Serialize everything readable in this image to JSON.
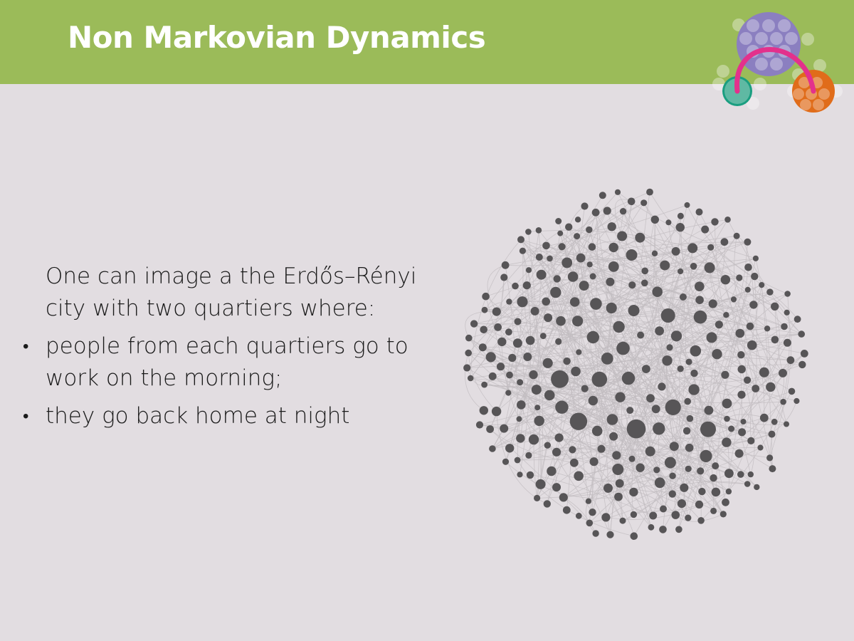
{
  "slide": {
    "title": "Non Markovian Dynamics",
    "intro": "One can image a the Erdős–Rényi city with two quartiers where:",
    "bullets": [
      "people from each quartiers go to work on the morning;",
      "they go back home at night"
    ]
  },
  "colors": {
    "header": "#9bbb59",
    "background": "#e2dde1",
    "node": "#575557",
    "edge": "#c2bdc1",
    "logo_purple": "#8b7fc0",
    "logo_teal": "#1a9e80",
    "logo_orange": "#e06c1a",
    "logo_arc": "#e3318c"
  }
}
